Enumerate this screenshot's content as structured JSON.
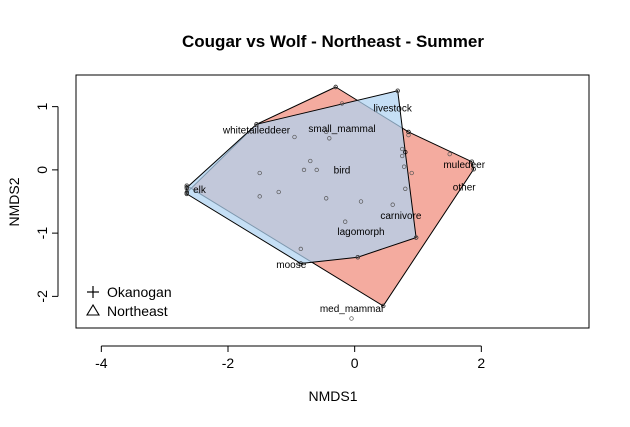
{
  "chart_data": {
    "type": "scatter",
    "title": "Cougar vs Wolf - Northeast - Summer",
    "xlabel": "NMDS1",
    "ylabel": "NMDS2",
    "xlim": [
      -4.4,
      3.7
    ],
    "ylim": [
      -2.5,
      1.5
    ],
    "xticks": [
      -4,
      -2,
      0,
      2
    ],
    "yticks": [
      -2,
      -1,
      0,
      1
    ],
    "legend": {
      "position": "bottom-left",
      "entries": [
        {
          "label": "Okanogan",
          "symbol": "plus"
        },
        {
          "label": "Northeast",
          "symbol": "triangle"
        }
      ]
    },
    "colors": {
      "okanogan_fill": "#F4A497",
      "northeast_fill": "#BBD9F2",
      "overlap_fill": "#B6AFC8",
      "outline": "#000000"
    },
    "hulls": [
      {
        "name": "Okanogan",
        "color": "#F08A7A",
        "opacity": 0.72,
        "points": [
          [
            -0.3,
            1.31
          ],
          [
            0.85,
            0.6
          ],
          [
            1.85,
            0.13
          ],
          [
            1.88,
            0.01
          ],
          [
            0.45,
            -2.15
          ],
          [
            -2.65,
            -0.25
          ],
          [
            -2.65,
            -0.36
          ],
          [
            -1.55,
            0.72
          ]
        ]
      },
      {
        "name": "Northeast",
        "color": "#AED3F1",
        "opacity": 0.72,
        "points": [
          [
            -1.55,
            0.72
          ],
          [
            0.68,
            1.25
          ],
          [
            0.8,
            0.28
          ],
          [
            0.97,
            -1.07
          ],
          [
            0.05,
            -1.38
          ],
          [
            -0.85,
            -1.48
          ],
          [
            -2.65,
            -0.38
          ],
          [
            -2.65,
            -0.28
          ]
        ]
      }
    ],
    "species": [
      {
        "name": "livestock",
        "x": 0.6,
        "y": 0.97
      },
      {
        "name": "whitetaileddeer",
        "x": -1.55,
        "y": 0.62
      },
      {
        "name": "small_mammal",
        "x": -0.2,
        "y": 0.65
      },
      {
        "name": "muledeer",
        "x": 1.73,
        "y": 0.08
      },
      {
        "name": "elk",
        "x": -2.45,
        "y": -0.32
      },
      {
        "name": "bird",
        "x": -0.2,
        "y": -0.01
      },
      {
        "name": "other",
        "x": 1.73,
        "y": -0.28
      },
      {
        "name": "carnivore",
        "x": 0.73,
        "y": -0.73
      },
      {
        "name": "lagomorph",
        "x": 0.1,
        "y": -0.98
      },
      {
        "name": "moose",
        "x": -1.0,
        "y": -1.5
      },
      {
        "name": "med_mammal",
        "x": -0.05,
        "y": -2.2
      }
    ],
    "sites": [
      {
        "x": -0.3,
        "y": 1.31
      },
      {
        "x": -0.2,
        "y": 1.05
      },
      {
        "x": 0.68,
        "y": 1.25
      },
      {
        "x": -1.55,
        "y": 0.72
      },
      {
        "x": -0.95,
        "y": 0.52
      },
      {
        "x": -0.45,
        "y": 0.6
      },
      {
        "x": -0.4,
        "y": 0.5
      },
      {
        "x": 0.85,
        "y": 0.55
      },
      {
        "x": 0.75,
        "y": 0.33
      },
      {
        "x": 0.75,
        "y": 0.22
      },
      {
        "x": 1.5,
        "y": 0.25
      },
      {
        "x": 1.85,
        "y": 0.13
      },
      {
        "x": 1.88,
        "y": 0.01
      },
      {
        "x": 0.9,
        "y": -0.05
      },
      {
        "x": 0.78,
        "y": 0.05
      },
      {
        "x": -0.7,
        "y": 0.14
      },
      {
        "x": -0.8,
        "y": 0.0
      },
      {
        "x": -0.6,
        "y": 0.0
      },
      {
        "x": -1.5,
        "y": -0.05
      },
      {
        "x": -1.2,
        "y": -0.35
      },
      {
        "x": -1.5,
        "y": -0.42
      },
      {
        "x": -2.65,
        "y": -0.25
      },
      {
        "x": -2.65,
        "y": -0.3
      },
      {
        "x": -2.65,
        "y": -0.38
      },
      {
        "x": -0.45,
        "y": -0.45
      },
      {
        "x": 0.1,
        "y": -0.5
      },
      {
        "x": 0.8,
        "y": -0.3
      },
      {
        "x": 0.6,
        "y": -0.55
      },
      {
        "x": -0.15,
        "y": -0.82
      },
      {
        "x": 0.97,
        "y": -1.07
      },
      {
        "x": 0.05,
        "y": -1.38
      },
      {
        "x": -0.85,
        "y": -1.25
      },
      {
        "x": -0.85,
        "y": -1.48
      },
      {
        "x": 0.45,
        "y": -2.15
      },
      {
        "x": -0.05,
        "y": -2.35
      }
    ]
  }
}
